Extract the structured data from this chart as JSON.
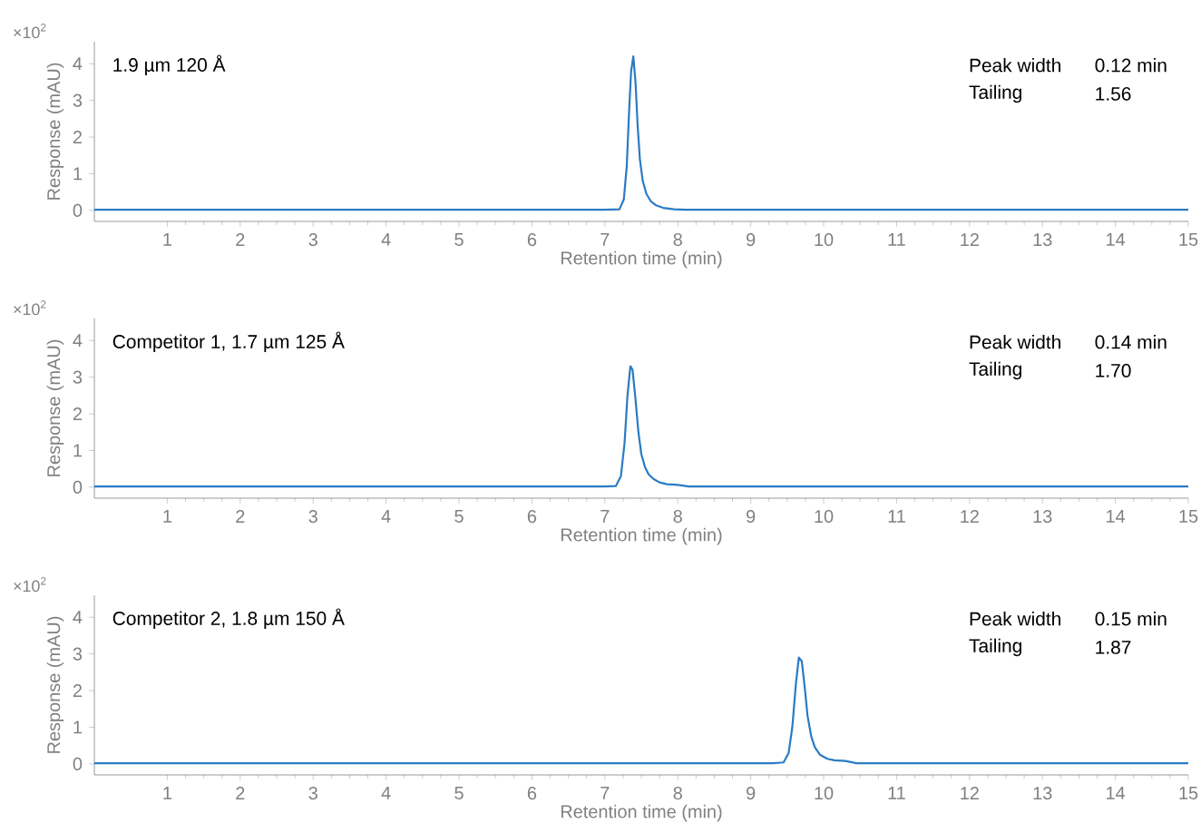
{
  "chart_data": [
    {
      "type": "line",
      "title": "1.9 µm 120 Å",
      "xlabel": "Retention time (min)",
      "ylabel": "Response (mAU)",
      "annotations": [
        "×10$^{2}$",
        "Peak width",
        "0.12 min",
        "Tailing",
        "1.56"
      ],
      "xlim": [
        0,
        15
      ],
      "ylim": [
        -0.3,
        4.6
      ],
      "xticks": [
        1,
        2,
        3,
        4,
        5,
        6,
        7,
        8,
        9,
        10,
        11,
        12,
        13,
        14,
        15
      ],
      "yticks": [
        0,
        1,
        2,
        3,
        4
      ],
      "grid": false,
      "marker": "none",
      "line_style": "solid",
      "series": [
        {
          "color": "#2a7bc4",
          "x": [
            0,
            7.0,
            7.2,
            7.26,
            7.3,
            7.33,
            7.36,
            7.39,
            7.42,
            7.45,
            7.48,
            7.52,
            7.57,
            7.63,
            7.7,
            7.8,
            7.95,
            8.1,
            15
          ],
          "values": [
            0.02,
            0.02,
            0.03,
            0.3,
            1.2,
            2.6,
            3.8,
            4.2,
            3.5,
            2.3,
            1.4,
            0.8,
            0.45,
            0.25,
            0.14,
            0.07,
            0.03,
            0.02,
            0.02
          ]
        }
      ]
    },
    {
      "type": "line",
      "title": "Competitor 1, 1.7 µm 125 Å",
      "xlabel": "Retention time (min)",
      "ylabel": "Response (mAU)",
      "annotations": [
        "×10$^{2}$",
        "Peak width",
        "0.14 min",
        "Tailing",
        "1.70"
      ],
      "xlim": [
        0,
        15
      ],
      "ylim": [
        -0.3,
        4.6
      ],
      "xticks": [
        1,
        2,
        3,
        4,
        5,
        6,
        7,
        8,
        9,
        10,
        11,
        12,
        13,
        14,
        15
      ],
      "yticks": [
        0,
        1,
        2,
        3,
        4
      ],
      "grid": false,
      "marker": "none",
      "line_style": "solid",
      "series": [
        {
          "color": "#2a7bc4",
          "x": [
            0,
            7.0,
            7.15,
            7.22,
            7.27,
            7.31,
            7.35,
            7.38,
            7.42,
            7.46,
            7.5,
            7.55,
            7.6,
            7.67,
            7.75,
            7.85,
            8.0,
            8.15,
            15
          ],
          "values": [
            0.02,
            0.02,
            0.03,
            0.3,
            1.2,
            2.5,
            3.3,
            3.2,
            2.4,
            1.5,
            0.9,
            0.55,
            0.35,
            0.22,
            0.13,
            0.08,
            0.06,
            0.02,
            0.02
          ]
        }
      ]
    },
    {
      "type": "line",
      "title": "Competitor 2, 1.8 µm 150 Å",
      "xlabel": "Retention time (min)",
      "ylabel": "Response (mAU)",
      "annotations": [
        "×10$^{2}$",
        "Peak width",
        "0.15 min",
        "Tailing",
        "1.87"
      ],
      "xlim": [
        0,
        15
      ],
      "ylim": [
        -0.3,
        4.6
      ],
      "xticks": [
        1,
        2,
        3,
        4,
        5,
        6,
        7,
        8,
        9,
        10,
        11,
        12,
        13,
        14,
        15
      ],
      "yticks": [
        0,
        1,
        2,
        3,
        4
      ],
      "grid": false,
      "marker": "none",
      "line_style": "solid",
      "series": [
        {
          "color": "#2a7bc4",
          "x": [
            0,
            9.3,
            9.45,
            9.52,
            9.57,
            9.62,
            9.66,
            9.7,
            9.74,
            9.78,
            9.83,
            9.88,
            9.95,
            10.05,
            10.15,
            10.3,
            10.45,
            15
          ],
          "values": [
            0.02,
            0.02,
            0.04,
            0.3,
            1.0,
            2.2,
            2.9,
            2.8,
            2.1,
            1.3,
            0.75,
            0.45,
            0.25,
            0.14,
            0.1,
            0.08,
            0.02,
            0.02
          ]
        }
      ]
    }
  ]
}
